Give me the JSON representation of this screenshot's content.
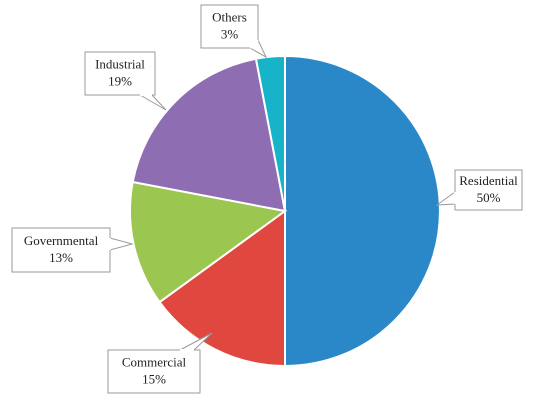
{
  "chart_data": {
    "type": "pie",
    "categories": [
      "Residential",
      "Commercial",
      "Governmental",
      "Industrial",
      "Others"
    ],
    "values": [
      50,
      15,
      13,
      19,
      3
    ],
    "value_labels": [
      "50%",
      "15%",
      "13%",
      "19%",
      "3%"
    ],
    "colors": [
      "#2b88c8",
      "#e0483f",
      "#9bc64f",
      "#8f6db3",
      "#17b3c9"
    ]
  }
}
